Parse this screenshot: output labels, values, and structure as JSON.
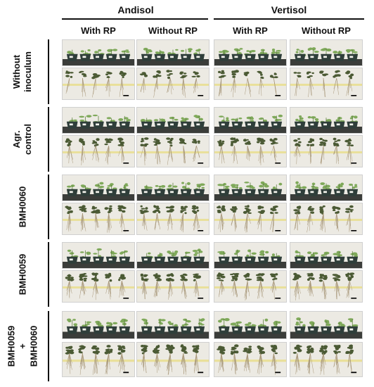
{
  "soils": [
    {
      "label": "Andisol",
      "conditions": [
        "With RP",
        "Without RP"
      ]
    },
    {
      "label": "Vertisol",
      "conditions": [
        "With RP",
        "Without RP"
      ]
    }
  ],
  "treatments": [
    {
      "label": "Without\ninoculum"
    },
    {
      "label": "Agr.\ncontrol"
    },
    {
      "label": "BMH0060"
    },
    {
      "label": "BMH0059"
    },
    {
      "label": "BMH0059\n+\nBMH0060"
    }
  ],
  "photo_types": [
    "shoot-pots",
    "root-systems"
  ],
  "colors": {
    "pot": "#2f3e3a",
    "bench": "#3b3d3a",
    "wall": "#eceae3",
    "leaf": "#7fa95a",
    "root": "#4b5a34",
    "tape": "#e8d86a",
    "scale_bar": "#000000"
  }
}
